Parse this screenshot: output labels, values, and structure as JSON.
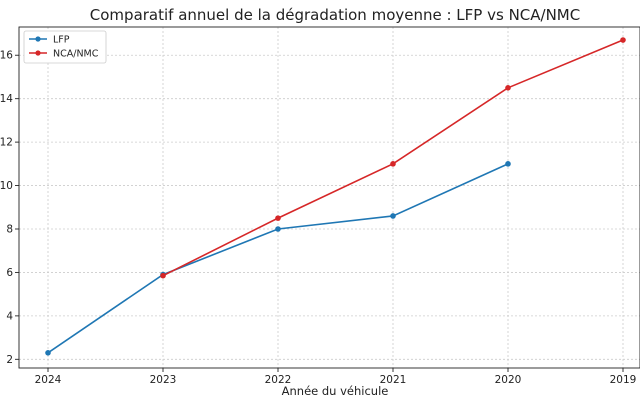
{
  "chart_data": {
    "type": "line",
    "title": "Comparatif annuel de la dégradation moyenne : LFP vs NCA/NMC",
    "xlabel": "Année du véhicule",
    "ylabel": "",
    "x": [
      "2024",
      "2023",
      "2022",
      "2021",
      "2020",
      "2019"
    ],
    "y_ticks": [
      2,
      4,
      6,
      8,
      10,
      12,
      14,
      16
    ],
    "ylim": [
      1.6,
      17.3
    ],
    "grid": true,
    "legend_position": "top-left",
    "series": [
      {
        "name": "LFP",
        "color": "#1f77b4",
        "values": [
          2.3,
          5.9,
          8.0,
          8.6,
          11.0,
          null
        ]
      },
      {
        "name": "NCA/NMC",
        "color": "#d62728",
        "values": [
          null,
          5.85,
          8.5,
          11.0,
          14.5,
          16.7
        ]
      }
    ]
  }
}
